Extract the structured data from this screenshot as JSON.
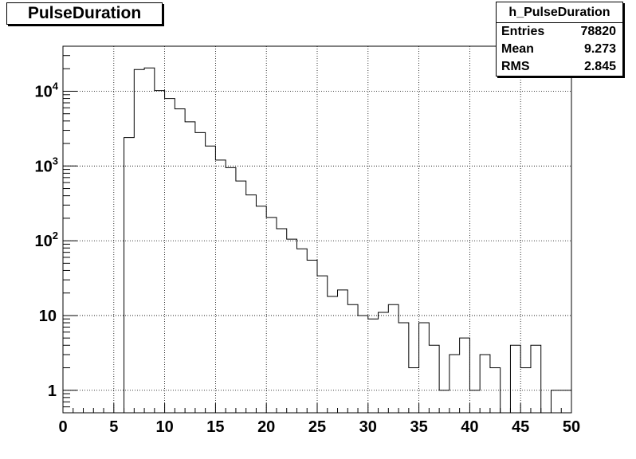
{
  "chart_data": {
    "type": "histogram",
    "title": "PulseDuration",
    "xlim": [
      0,
      50
    ],
    "ylim": [
      0.5,
      40000
    ],
    "log_y": true,
    "grid": true,
    "bin_width": 1,
    "x_ticks": [
      0,
      5,
      10,
      15,
      20,
      25,
      30,
      35,
      40,
      45,
      50
    ],
    "y_ticks": [
      {
        "value": 1,
        "label": "1"
      },
      {
        "value": 10,
        "label": "10"
      },
      {
        "value": 100,
        "label": "10",
        "exp": "2"
      },
      {
        "value": 1000,
        "label": "10",
        "exp": "3"
      },
      {
        "value": 10000,
        "label": "10",
        "exp": "4"
      }
    ],
    "bins": [
      {
        "x": 6,
        "value": 2400
      },
      {
        "x": 7,
        "value": 19500
      },
      {
        "x": 8,
        "value": 20500
      },
      {
        "x": 9,
        "value": 10200
      },
      {
        "x": 10,
        "value": 8000
      },
      {
        "x": 11,
        "value": 5800
      },
      {
        "x": 12,
        "value": 3900
      },
      {
        "x": 13,
        "value": 2800
      },
      {
        "x": 14,
        "value": 1850
      },
      {
        "x": 15,
        "value": 1200
      },
      {
        "x": 16,
        "value": 950
      },
      {
        "x": 17,
        "value": 630
      },
      {
        "x": 18,
        "value": 410
      },
      {
        "x": 19,
        "value": 290
      },
      {
        "x": 20,
        "value": 205
      },
      {
        "x": 21,
        "value": 145
      },
      {
        "x": 22,
        "value": 105
      },
      {
        "x": 23,
        "value": 78
      },
      {
        "x": 24,
        "value": 55
      },
      {
        "x": 25,
        "value": 34
      },
      {
        "x": 26,
        "value": 18
      },
      {
        "x": 27,
        "value": 22
      },
      {
        "x": 28,
        "value": 14
      },
      {
        "x": 29,
        "value": 10
      },
      {
        "x": 30,
        "value": 9
      },
      {
        "x": 31,
        "value": 11
      },
      {
        "x": 32,
        "value": 14
      },
      {
        "x": 33,
        "value": 8
      },
      {
        "x": 34,
        "value": 2
      },
      {
        "x": 35,
        "value": 8
      },
      {
        "x": 36,
        "value": 4
      },
      {
        "x": 37,
        "value": 1
      },
      {
        "x": 38,
        "value": 3
      },
      {
        "x": 39,
        "value": 5
      },
      {
        "x": 40,
        "value": 1
      },
      {
        "x": 41,
        "value": 3
      },
      {
        "x": 42,
        "value": 2
      },
      {
        "x": 43,
        "value": 0
      },
      {
        "x": 44,
        "value": 4
      },
      {
        "x": 45,
        "value": 2
      },
      {
        "x": 46,
        "value": 4
      },
      {
        "x": 47,
        "value": 0
      },
      {
        "x": 48,
        "value": 1
      },
      {
        "x": 49,
        "value": 1
      }
    ]
  },
  "stats": {
    "name": "h_PulseDuration",
    "rows": [
      {
        "label": "Entries",
        "value": "78820"
      },
      {
        "label": "Mean",
        "value": "9.273"
      },
      {
        "label": "RMS",
        "value": "2.845"
      }
    ]
  },
  "colors": {
    "line": "#000000",
    "background": "#ffffff"
  }
}
